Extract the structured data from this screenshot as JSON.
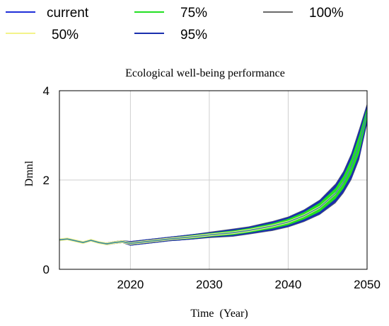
{
  "legend": {
    "items": [
      {
        "label": "current",
        "color": "#1f2fd8"
      },
      {
        "label": "75%",
        "color": "#22e022"
      },
      {
        "label": "100%",
        "color": "#6a6a6a"
      },
      {
        "label": "50%",
        "color": "#f3f38a"
      },
      {
        "label": "95%",
        "color": "#1a2fae"
      }
    ]
  },
  "chart_data": {
    "type": "area",
    "title": "Ecological well-being performance",
    "xlabel": "Time  (Year)",
    "ylabel": "Dmnl",
    "xlim": [
      2011,
      2050
    ],
    "ylim": [
      0,
      4
    ],
    "x_ticks": [
      2020,
      2030,
      2040,
      2050
    ],
    "y_ticks": [
      0,
      2,
      4
    ],
    "grid": true,
    "legend_position": "top",
    "x": [
      2011,
      2012,
      2013,
      2014,
      2015,
      2016,
      2017,
      2018,
      2019,
      2020,
      2022,
      2025,
      2028,
      2030,
      2033,
      2035,
      2038,
      2040,
      2042,
      2044,
      2046,
      2047,
      2048,
      2049,
      2050
    ],
    "series": [
      {
        "name": "current",
        "values": [
          0.66,
          0.68,
          0.64,
          0.6,
          0.65,
          0.6,
          0.57,
          0.6,
          0.62,
          0.58,
          0.62,
          0.68,
          0.73,
          0.77,
          0.82,
          0.87,
          0.97,
          1.06,
          1.2,
          1.39,
          1.7,
          1.95,
          2.3,
          2.8,
          3.5
        ]
      },
      {
        "name": "50%",
        "values": [
          0.66,
          0.68,
          0.64,
          0.6,
          0.65,
          0.6,
          0.57,
          0.6,
          0.62,
          0.58,
          0.62,
          0.68,
          0.73,
          0.77,
          0.82,
          0.87,
          0.97,
          1.06,
          1.2,
          1.39,
          1.7,
          1.95,
          2.3,
          2.8,
          3.5
        ]
      },
      {
        "name": "75%",
        "values": [
          0.67,
          0.69,
          0.65,
          0.61,
          0.66,
          0.61,
          0.59,
          0.62,
          0.64,
          0.61,
          0.65,
          0.71,
          0.77,
          0.81,
          0.87,
          0.92,
          1.03,
          1.13,
          1.28,
          1.49,
          1.82,
          2.09,
          2.47,
          3.0,
          3.62
        ]
      },
      {
        "name": "95%",
        "values": [
          0.67,
          0.69,
          0.66,
          0.62,
          0.67,
          0.62,
          0.6,
          0.63,
          0.65,
          0.63,
          0.67,
          0.73,
          0.79,
          0.83,
          0.9,
          0.95,
          1.07,
          1.17,
          1.33,
          1.55,
          1.9,
          2.18,
          2.58,
          3.12,
          3.7
        ]
      },
      {
        "name": "100%",
        "values": [
          0.67,
          0.69,
          0.66,
          0.62,
          0.67,
          0.62,
          0.6,
          0.63,
          0.65,
          0.63,
          0.67,
          0.73,
          0.79,
          0.84,
          0.91,
          0.96,
          1.08,
          1.18,
          1.34,
          1.56,
          1.92,
          2.2,
          2.6,
          3.15,
          3.72
        ]
      }
    ],
    "lower_series": [
      {
        "name": "75%",
        "values": [
          0.65,
          0.67,
          0.63,
          0.59,
          0.64,
          0.59,
          0.55,
          0.58,
          0.6,
          0.55,
          0.59,
          0.65,
          0.69,
          0.73,
          0.77,
          0.82,
          0.91,
          0.99,
          1.12,
          1.29,
          1.58,
          1.81,
          2.13,
          2.6,
          3.38
        ]
      },
      {
        "name": "95%",
        "values": [
          0.65,
          0.67,
          0.62,
          0.58,
          0.63,
          0.58,
          0.54,
          0.57,
          0.59,
          0.53,
          0.57,
          0.63,
          0.67,
          0.71,
          0.74,
          0.79,
          0.87,
          0.95,
          1.07,
          1.23,
          1.5,
          1.72,
          2.02,
          2.48,
          3.27
        ]
      },
      {
        "name": "100%",
        "values": [
          0.65,
          0.67,
          0.62,
          0.58,
          0.63,
          0.58,
          0.54,
          0.57,
          0.59,
          0.53,
          0.57,
          0.63,
          0.67,
          0.7,
          0.73,
          0.78,
          0.86,
          0.94,
          1.06,
          1.22,
          1.48,
          1.7,
          2.0,
          2.45,
          3.25
        ]
      }
    ]
  }
}
